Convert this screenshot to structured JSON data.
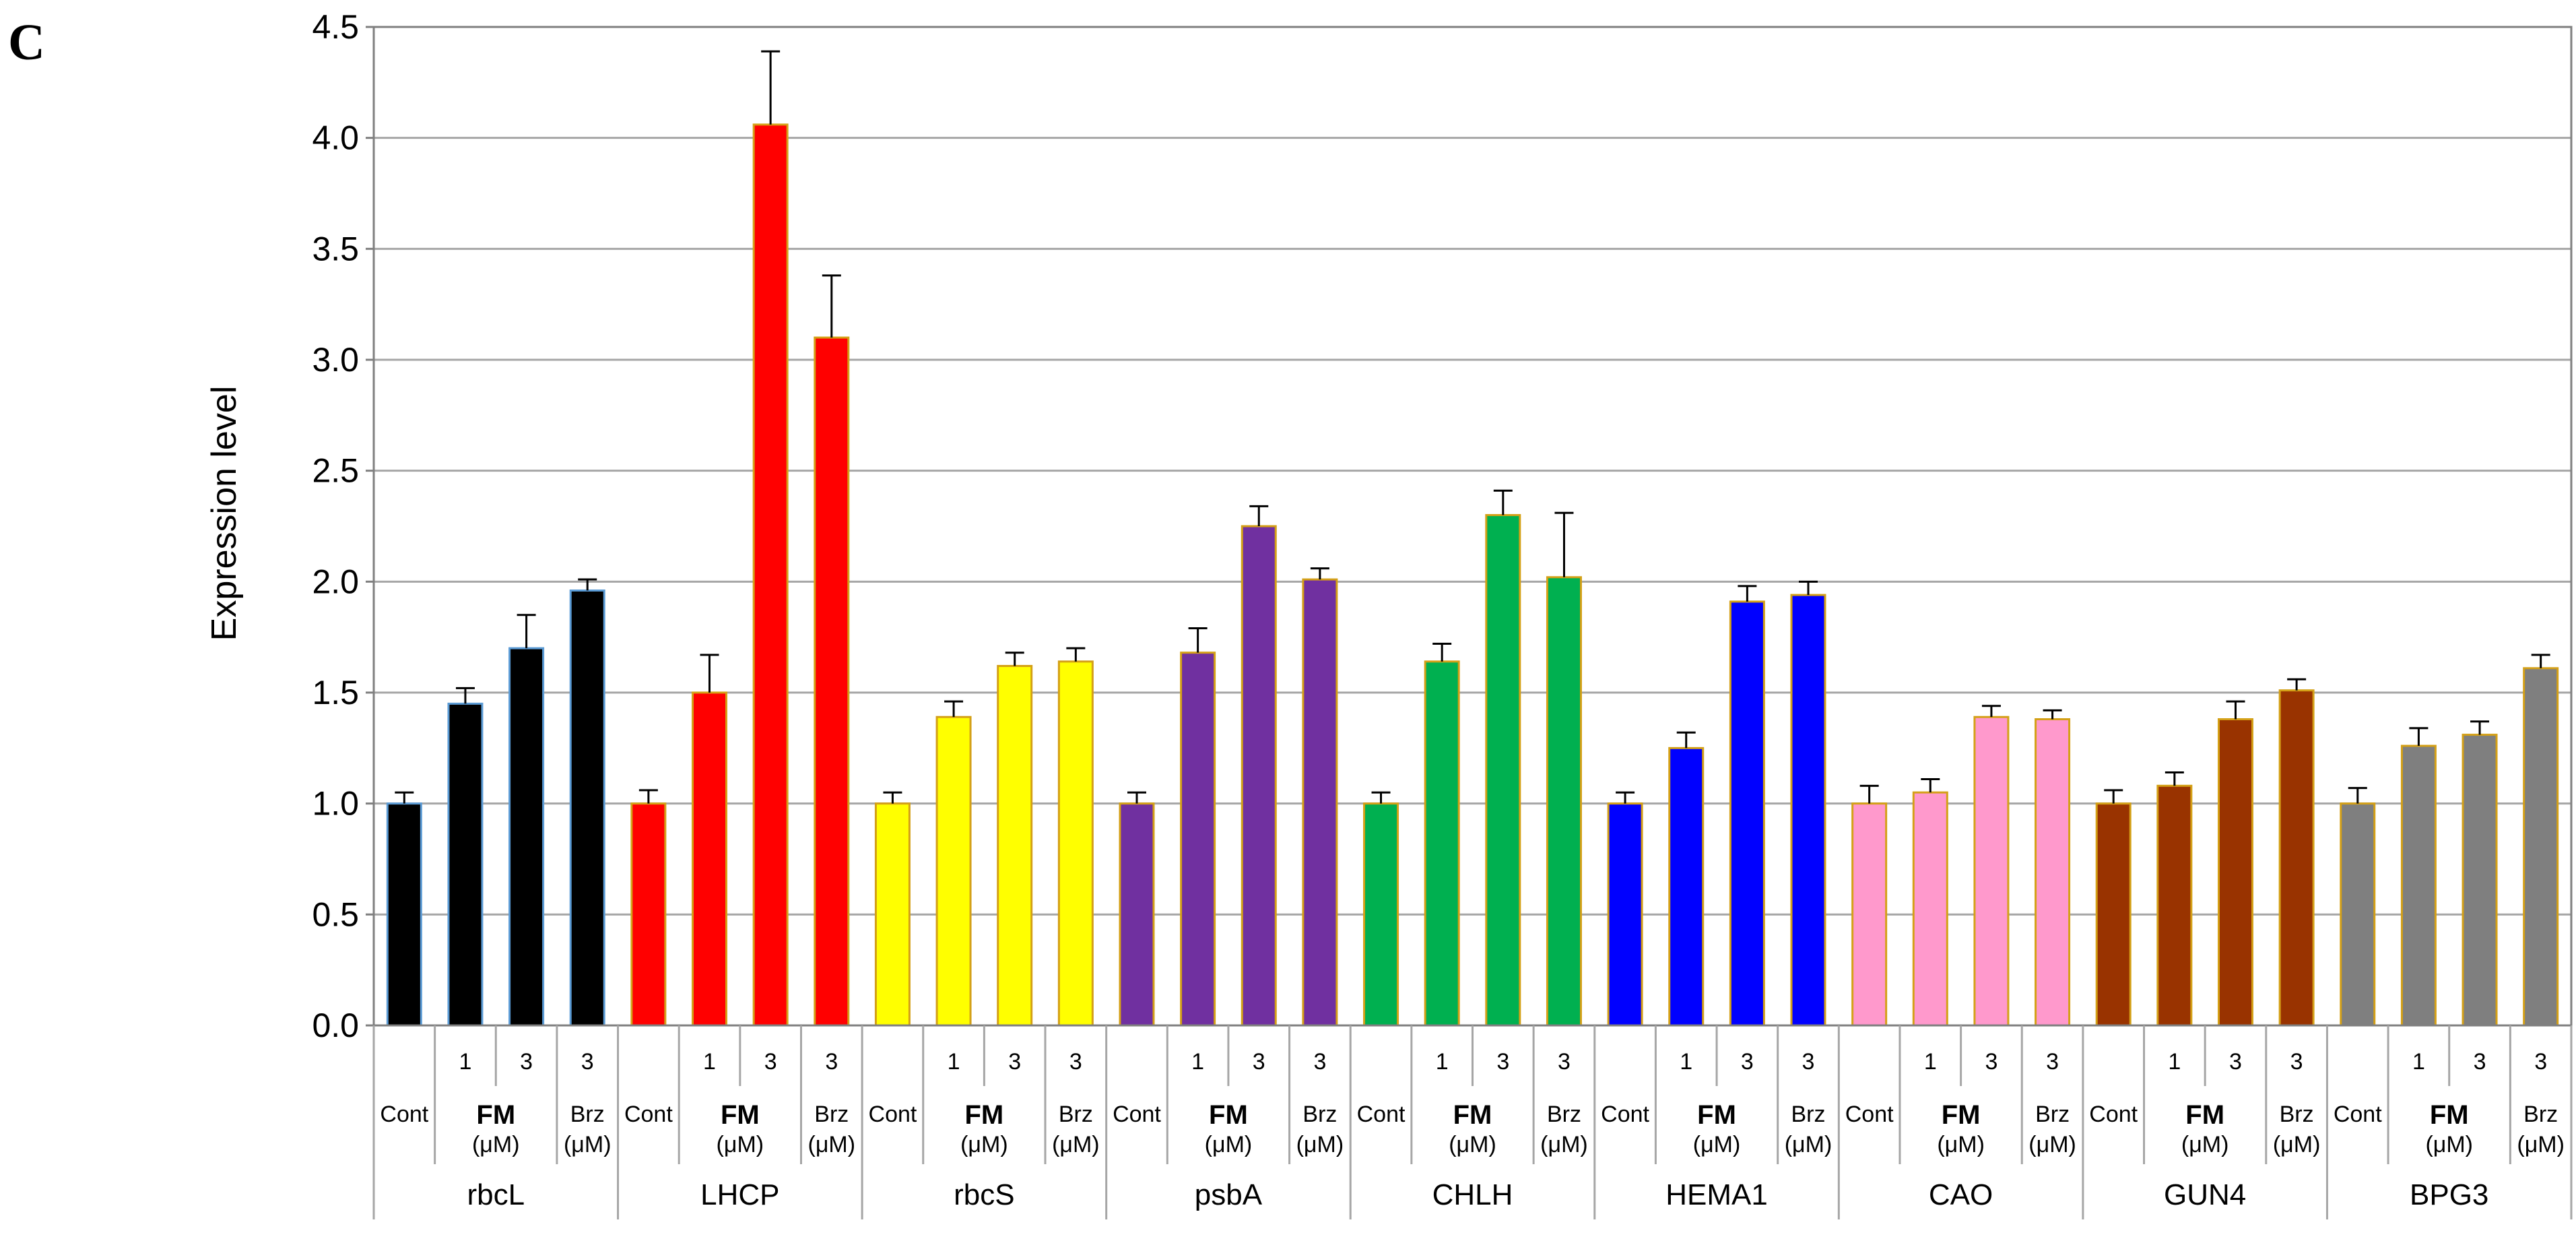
{
  "panel_label": "C",
  "colors": {
    "rbcL": "#000000",
    "LHCP": "#ff0000",
    "rbcS": "#ffff00",
    "psbA": "#7030a0",
    "CHLH": "#00b050",
    "HEMA1": "#0000ff",
    "CAO": "#ff99cc",
    "GUN4": "#993300",
    "BPG3": "#7f7f7f"
  },
  "sublabels": {
    "cont": "Cont",
    "fm": "FM",
    "brz": "Brz",
    "unit": "(μM)",
    "dose1": "1",
    "dose3": "3"
  },
  "chart_data": {
    "type": "bar",
    "ylabel": "Expression level",
    "ylim": [
      0,
      4.5
    ],
    "yticks": [
      "0.0",
      "0.5",
      "1.0",
      "1.5",
      "2.0",
      "2.5",
      "3.0",
      "3.5",
      "4.0",
      "4.5"
    ],
    "grid": true,
    "treatments": [
      "Cont",
      "FM 1 μM",
      "FM 3 μM",
      "Brz 3 μM"
    ],
    "genes": [
      {
        "name": "rbcL",
        "values": [
          1.0,
          1.45,
          1.7,
          1.96
        ],
        "errors": [
          0.05,
          0.07,
          0.15,
          0.05
        ]
      },
      {
        "name": "LHCP",
        "values": [
          1.0,
          1.5,
          4.06,
          3.1
        ],
        "errors": [
          0.06,
          0.17,
          0.33,
          0.28
        ]
      },
      {
        "name": "rbcS",
        "values": [
          1.0,
          1.39,
          1.62,
          1.64
        ],
        "errors": [
          0.05,
          0.07,
          0.06,
          0.06
        ]
      },
      {
        "name": "psbA",
        "values": [
          1.0,
          1.68,
          2.25,
          2.01
        ],
        "errors": [
          0.05,
          0.11,
          0.09,
          0.05
        ]
      },
      {
        "name": "CHLH",
        "values": [
          1.0,
          1.64,
          2.3,
          2.02
        ],
        "errors": [
          0.05,
          0.08,
          0.11,
          0.29
        ]
      },
      {
        "name": "HEMA1",
        "values": [
          1.0,
          1.25,
          1.91,
          1.94
        ],
        "errors": [
          0.05,
          0.07,
          0.07,
          0.06
        ]
      },
      {
        "name": "CAO",
        "values": [
          1.0,
          1.05,
          1.39,
          1.38
        ],
        "errors": [
          0.08,
          0.06,
          0.05,
          0.04
        ]
      },
      {
        "name": "GUN4",
        "values": [
          1.0,
          1.08,
          1.38,
          1.51
        ],
        "errors": [
          0.06,
          0.06,
          0.08,
          0.05
        ]
      },
      {
        "name": "BPG3",
        "values": [
          1.0,
          1.26,
          1.31,
          1.61
        ],
        "errors": [
          0.07,
          0.08,
          0.06,
          0.06
        ]
      }
    ]
  }
}
